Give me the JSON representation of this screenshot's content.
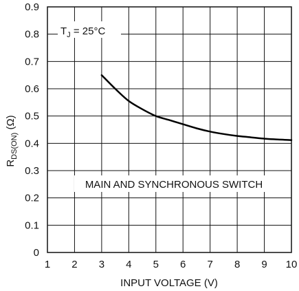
{
  "chart_data": {
    "type": "line",
    "title": "",
    "xlabel": "INPUT VOLTAGE (V)",
    "ylabel": {
      "main": "R",
      "sub": "DS(ON)",
      "unit": " (Ω)"
    },
    "xlim": [
      1,
      10
    ],
    "ylim": [
      0,
      0.9
    ],
    "xticks": [
      "1",
      "2",
      "3",
      "4",
      "5",
      "6",
      "7",
      "8",
      "9",
      "10"
    ],
    "yticks": [
      "0",
      "0.1",
      "0.2",
      "0.3",
      "0.4",
      "0.5",
      "0.6",
      "0.7",
      "0.8",
      "0.9"
    ],
    "grid": true,
    "series": [
      {
        "x": [
          3,
          3.5,
          4,
          4.5,
          5,
          5.5,
          6,
          6.5,
          7,
          7.5,
          8,
          8.5,
          9,
          9.5,
          10
        ],
        "values": [
          0.65,
          0.6,
          0.555,
          0.525,
          0.5,
          0.485,
          0.47,
          0.455,
          0.443,
          0.434,
          0.427,
          0.422,
          0.417,
          0.414,
          0.412
        ]
      }
    ],
    "annotations": {
      "condition": {
        "t": "T",
        "sub": "J",
        "rest": " = 25°C"
      },
      "label": "MAIN AND SYNCHRONOUS SWITCH"
    },
    "colors": {
      "line": "#000000",
      "grid": "#111111"
    }
  }
}
